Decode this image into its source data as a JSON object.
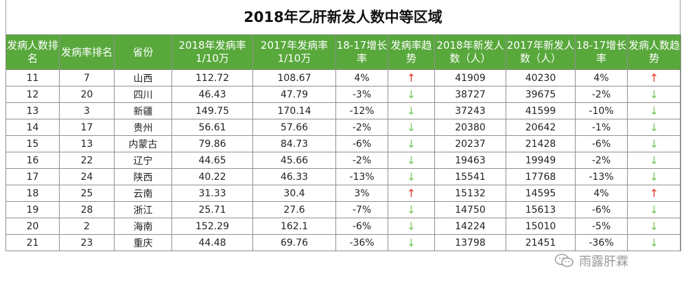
{
  "title": "2018年乙肝新发人数中等区域",
  "colors": {
    "header_bg": "#58a83c",
    "up_arrow": "#e23a2a",
    "down_arrow": "#78c860"
  },
  "headers": [
    "发病人数排名",
    "发病率排名",
    "省份",
    "2018年发病率1/10万",
    "2017年发病率1/10万",
    "18-17增长率",
    "发病率趋势",
    "2018年新发人数（人）",
    "2017年新发人数（人）",
    "18-17增长率",
    "发病人数趋势"
  ],
  "rows": [
    {
      "rank": "11",
      "rate_rank": "7",
      "province": "山西",
      "rate2018": "112.72",
      "rate2017": "108.67",
      "rate_growth": "4%",
      "rate_trend": "↑",
      "cases2018": "41909",
      "cases2017": "40230",
      "cases_growth": "4%",
      "cases_trend": "↑"
    },
    {
      "rank": "12",
      "rate_rank": "20",
      "province": "四川",
      "rate2018": "46.43",
      "rate2017": "47.79",
      "rate_growth": "-3%",
      "rate_trend": "↓",
      "cases2018": "38727",
      "cases2017": "39675",
      "cases_growth": "-2%",
      "cases_trend": "↓"
    },
    {
      "rank": "13",
      "rate_rank": "3",
      "province": "新疆",
      "rate2018": "149.75",
      "rate2017": "170.14",
      "rate_growth": "-12%",
      "rate_trend": "↓",
      "cases2018": "37243",
      "cases2017": "41599",
      "cases_growth": "-10%",
      "cases_trend": "↓"
    },
    {
      "rank": "14",
      "rate_rank": "17",
      "province": "贵州",
      "rate2018": "56.61",
      "rate2017": "57.66",
      "rate_growth": "-2%",
      "rate_trend": "↓",
      "cases2018": "20380",
      "cases2017": "20642",
      "cases_growth": "-1%",
      "cases_trend": "↓"
    },
    {
      "rank": "15",
      "rate_rank": "13",
      "province": "内蒙古",
      "rate2018": "79.86",
      "rate2017": "84.73",
      "rate_growth": "-6%",
      "rate_trend": "↓",
      "cases2018": "20237",
      "cases2017": "21428",
      "cases_growth": "-6%",
      "cases_trend": "↓"
    },
    {
      "rank": "16",
      "rate_rank": "22",
      "province": "辽宁",
      "rate2018": "44.65",
      "rate2017": "45.66",
      "rate_growth": "-2%",
      "rate_trend": "↓",
      "cases2018": "19463",
      "cases2017": "19949",
      "cases_growth": "-2%",
      "cases_trend": "↓"
    },
    {
      "rank": "17",
      "rate_rank": "24",
      "province": "陕西",
      "rate2018": "40.22",
      "rate2017": "46.33",
      "rate_growth": "-13%",
      "rate_trend": "↓",
      "cases2018": "15541",
      "cases2017": "17768",
      "cases_growth": "-13%",
      "cases_trend": "↓"
    },
    {
      "rank": "18",
      "rate_rank": "25",
      "province": "云南",
      "rate2018": "31.33",
      "rate2017": "30.4",
      "rate_growth": "3%",
      "rate_trend": "↑",
      "cases2018": "15132",
      "cases2017": "14595",
      "cases_growth": "4%",
      "cases_trend": "↑"
    },
    {
      "rank": "19",
      "rate_rank": "28",
      "province": "浙江",
      "rate2018": "25.71",
      "rate2017": "27.6",
      "rate_growth": "-7%",
      "rate_trend": "↓",
      "cases2018": "14750",
      "cases2017": "15613",
      "cases_growth": "-6%",
      "cases_trend": "↓"
    },
    {
      "rank": "20",
      "rate_rank": "2",
      "province": "海南",
      "rate2018": "152.29",
      "rate2017": "162.1",
      "rate_growth": "-6%",
      "rate_trend": "↓",
      "cases2018": "14224",
      "cases2017": "15010",
      "cases_growth": "-5%",
      "cases_trend": "↓"
    },
    {
      "rank": "21",
      "rate_rank": "23",
      "province": "重庆",
      "rate2018": "44.48",
      "rate2017": "69.76",
      "rate_growth": "-36%",
      "rate_trend": "↓",
      "cases2018": "13798",
      "cases2017": "21451",
      "cases_growth": "-36%",
      "cases_trend": "↓"
    }
  ],
  "watermark": {
    "text": "雨露肝霖",
    "icon": "wechat-icon"
  }
}
